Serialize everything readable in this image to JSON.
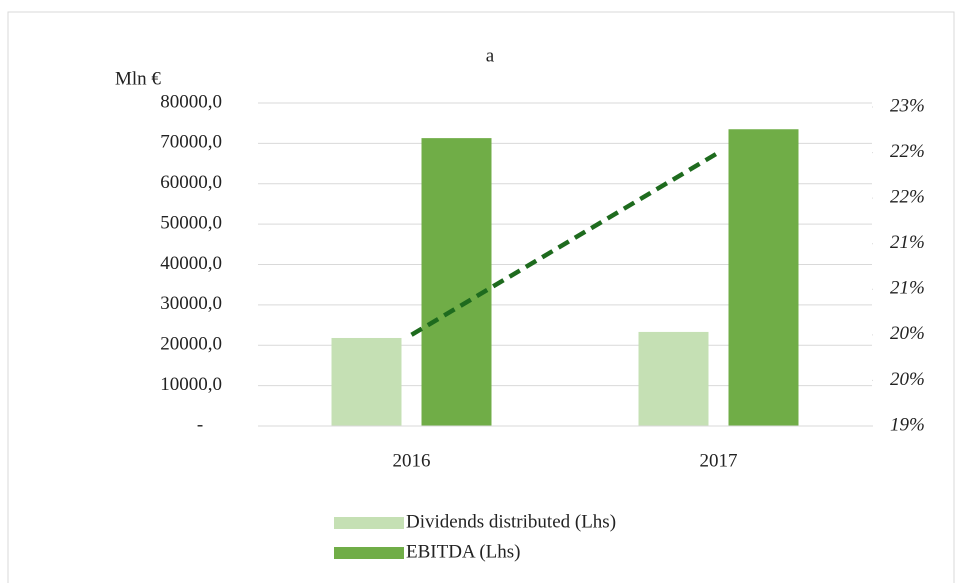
{
  "chart_data": {
    "type": "bar",
    "title": "a",
    "y_label": "Mln €",
    "categories": [
      "2016",
      "2017"
    ],
    "series": [
      {
        "name": "Dividends distributed (Lhs)",
        "color": "#c5e0b4",
        "values": [
          21800,
          23300
        ]
      },
      {
        "name": "EBITDA  (Lhs)",
        "color": "#70ad47",
        "values": [
          71300,
          73500
        ]
      },
      {
        "type": "line",
        "axis": "y2",
        "color": "#1e6b1e",
        "values": [
          20,
          22
        ]
      }
    ],
    "ylim": [
      0,
      80000
    ],
    "yticks": [
      {
        "value": 0,
        "label": "-"
      },
      {
        "value": 10000,
        "label": "10000,0"
      },
      {
        "value": 20000,
        "label": "20000,0"
      },
      {
        "value": 30000,
        "label": "30000,0"
      },
      {
        "value": 40000,
        "label": "40000,0"
      },
      {
        "value": 50000,
        "label": "50000,0"
      },
      {
        "value": 60000,
        "label": "60000,0"
      },
      {
        "value": 70000,
        "label": "70000,0"
      },
      {
        "value": 80000,
        "label": "80000,0"
      }
    ],
    "y2lim": [
      19,
      22.5
    ],
    "y2ticks": [
      {
        "value": 19,
        "label": "19%"
      },
      {
        "value": 19.5,
        "label": "20%"
      },
      {
        "value": 20,
        "label": "20%"
      },
      {
        "value": 20.5,
        "label": "21%"
      },
      {
        "value": 21,
        "label": "21%"
      },
      {
        "value": 21.5,
        "label": "22%"
      },
      {
        "value": 22,
        "label": "22%"
      },
      {
        "value": 22.5,
        "label": "23%"
      }
    ],
    "grid": true
  }
}
